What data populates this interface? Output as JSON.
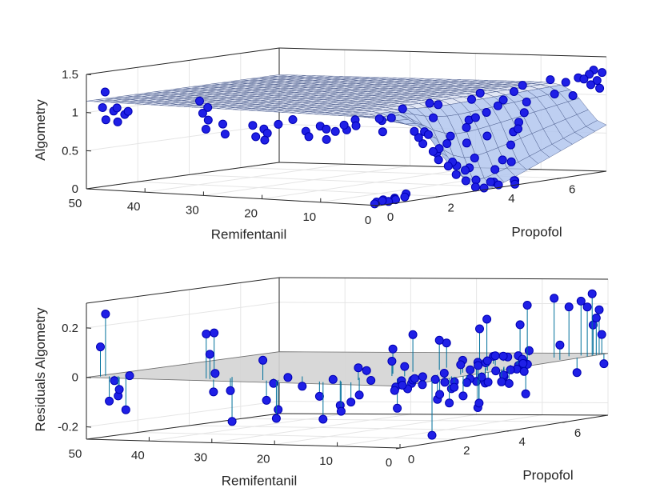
{
  "figure": {
    "colors": {
      "marker": "#1f1fe6",
      "marker_edge": "#0000b3",
      "surface_fill": "#b3c7ef",
      "zero_plane": "#d4d4d4",
      "stem": "#00709b",
      "box": "#262626",
      "grid": "#e5e5e5"
    }
  },
  "chart_data": [
    {
      "type": "scatter",
      "subtype": "3d-scatter-with-fitted-surface",
      "title": "",
      "xlabel": "Remifentanil",
      "ylabel": "Propofol",
      "zlabel": "Algometry",
      "xlim": [
        0,
        50
      ],
      "ylim": [
        0,
        7.5
      ],
      "zlim": [
        0,
        1.5
      ],
      "xticks": [
        "50",
        "40",
        "30",
        "20",
        "10",
        "0"
      ],
      "yticks": [
        "0",
        "2",
        "4",
        "6"
      ],
      "zticks": [
        "0",
        "0.5",
        "1",
        "1.5"
      ],
      "grid": true,
      "surface": {
        "model": "response surface, ~1.15 plateau dropping to ~0 at high Propofol / low Remifentanil",
        "plateau": 1.15,
        "minimum": 0
      },
      "points_xyz": [
        [
          49,
          0.5,
          1.25
        ],
        [
          49,
          0.4,
          1.05
        ],
        [
          48,
          0.6,
          1.0
        ],
        [
          48,
          0.3,
          0.9
        ],
        [
          47,
          0.5,
          1.05
        ],
        [
          47,
          0.8,
          0.95
        ],
        [
          46,
          0.3,
          0.88
        ],
        [
          46,
          0.7,
          1.0
        ],
        [
          33,
          0.5,
          1.2
        ],
        [
          33,
          0.8,
          1.1
        ],
        [
          32,
          0.4,
          1.05
        ],
        [
          32,
          0.6,
          0.95
        ],
        [
          31,
          1.0,
          0.75
        ],
        [
          31,
          0.3,
          0.85
        ],
        [
          30,
          0.7,
          0.9
        ],
        [
          24,
          0.5,
          0.92
        ],
        [
          24,
          0.9,
          0.85
        ],
        [
          23,
          0.4,
          0.78
        ],
        [
          23,
          1.2,
          0.9
        ],
        [
          22,
          0.6,
          0.82
        ],
        [
          22,
          1.5,
          0.95
        ],
        [
          21,
          0.3,
          0.75
        ],
        [
          15,
          0.5,
          0.88
        ],
        [
          15,
          1.0,
          0.92
        ],
        [
          14,
          0.4,
          0.82
        ],
        [
          14,
          2.0,
          0.95
        ],
        [
          13,
          0.8,
          0.9
        ],
        [
          13,
          1.5,
          0.85
        ],
        [
          12,
          0.6,
          0.78
        ],
        [
          12,
          2.5,
          0.92
        ],
        [
          11,
          1.0,
          0.95
        ],
        [
          11,
          3.0,
          1.05
        ],
        [
          10,
          0.5,
          0.9
        ],
        [
          10,
          2.0,
          0.98
        ],
        [
          10,
          4.0,
          1.05
        ],
        [
          9,
          1.0,
          0.95
        ],
        [
          9,
          3.5,
          1.1
        ],
        [
          8,
          2.0,
          1.0
        ],
        [
          8,
          5.0,
          1.15
        ],
        [
          7,
          1.5,
          0.85
        ],
        [
          7,
          4.5,
          1.1
        ],
        [
          6,
          3.0,
          0.95
        ],
        [
          6,
          6.0,
          1.2
        ],
        [
          5,
          2.5,
          0.8
        ],
        [
          5,
          5.5,
          1.15
        ],
        [
          4,
          4.0,
          0.9
        ],
        [
          4,
          6.5,
          1.25
        ],
        [
          3,
          3.5,
          0.6
        ],
        [
          3,
          6.8,
          1.2
        ],
        [
          2,
          5.0,
          0.7
        ],
        [
          2,
          7.0,
          1.25
        ],
        [
          1,
          6.0,
          1.1
        ],
        [
          1,
          7.2,
          1.15
        ],
        [
          0.5,
          6.5,
          1.05
        ],
        [
          0.5,
          7.3,
          1.2
        ],
        [
          0.3,
          7.0,
          1.3
        ],
        [
          0.2,
          6.8,
          1.25
        ],
        [
          0.1,
          7.1,
          1.35
        ],
        [
          0.1,
          7.3,
          1.1
        ],
        [
          0.2,
          7.4,
          1.3
        ],
        [
          0.2,
          1.2,
          0.9
        ],
        [
          0.3,
          1.5,
          0.72
        ],
        [
          0.1,
          1.8,
          0.6
        ],
        [
          0.2,
          2.0,
          0.48
        ],
        [
          0.1,
          2.3,
          0.38
        ],
        [
          0.3,
          2.6,
          0.25
        ],
        [
          0.2,
          2.9,
          0.15
        ],
        [
          0.1,
          3.2,
          0.05
        ],
        [
          0.2,
          3.5,
          0.02
        ],
        [
          0.3,
          4.0,
          0.03
        ],
        [
          0.1,
          4.5,
          0.01
        ],
        [
          1.0,
          1.5,
          0.8
        ],
        [
          1.5,
          2.2,
          0.55
        ],
        [
          1.2,
          2.8,
          0.35
        ],
        [
          1.5,
          3.5,
          0.12
        ],
        [
          2.0,
          4.2,
          0.05
        ],
        [
          2.5,
          5.0,
          0.02
        ],
        [
          0.6,
          2.1,
          0.62
        ],
        [
          0.8,
          3.0,
          0.28
        ],
        [
          0.6,
          3.8,
          0.08
        ],
        [
          0.9,
          1.8,
          0.82
        ],
        [
          1.1,
          3.2,
          0.3
        ],
        [
          1.8,
          2.6,
          0.65
        ],
        [
          0.4,
          2.5,
          0.42
        ],
        [
          0.7,
          4.6,
          0.05
        ],
        [
          2.2,
          3.6,
          0.4
        ],
        [
          2.8,
          4.4,
          0.2
        ],
        [
          3.2,
          3.0,
          0.72
        ],
        [
          3.5,
          4.8,
          0.3
        ],
        [
          4.0,
          5.2,
          0.25
        ],
        [
          4.5,
          3.8,
          0.78
        ],
        [
          5.0,
          4.6,
          0.62
        ],
        [
          5.5,
          5.5,
          0.45
        ],
        [
          6.0,
          4.2,
          0.85
        ],
        [
          6.5,
          5.8,
          0.6
        ],
        [
          7.0,
          5.0,
          0.9
        ],
        [
          7.5,
          6.2,
          0.7
        ],
        [
          8.0,
          5.6,
          0.95
        ],
        [
          8.5,
          6.6,
          0.8
        ],
        [
          9.0,
          6.0,
          1.0
        ],
        [
          9.5,
          6.9,
          0.92
        ],
        [
          0.5,
          0.2,
          0.05
        ],
        [
          1.0,
          0.5,
          0.02
        ],
        [
          1.5,
          0.8,
          0.03
        ],
        [
          2.0,
          0.3,
          0.02
        ],
        [
          0.8,
          1.0,
          0.05
        ],
        [
          1.3,
          0.1,
          0.01
        ],
        [
          2.4,
          0.6,
          0.03
        ],
        [
          3.0,
          1.1,
          0.02
        ],
        [
          0.3,
          0.6,
          0.04
        ],
        [
          2.6,
          1.4,
          0.06
        ]
      ]
    },
    {
      "type": "scatter",
      "subtype": "3d-stem-residuals",
      "title": "",
      "xlabel": "Remifentanil",
      "ylabel": "Propofol",
      "zlabel": "Residuals Algometry",
      "xlim": [
        0,
        50
      ],
      "ylim": [
        0,
        7.5
      ],
      "zlim": [
        -0.25,
        0.3
      ],
      "xticks": [
        "50",
        "40",
        "30",
        "20",
        "10",
        "0"
      ],
      "yticks": [
        "0",
        "2",
        "4",
        "6"
      ],
      "zticks": [
        "-0.2",
        "0",
        "0.2"
      ],
      "grid": true,
      "zero_plane": 0,
      "points_xyz": [
        [
          49,
          0.5,
          0.25
        ],
        [
          49,
          0.3,
          0.12
        ],
        [
          48,
          0.6,
          -0.02
        ],
        [
          48,
          0.4,
          -0.1
        ],
        [
          47,
          0.5,
          -0.08
        ],
        [
          47,
          0.8,
          -0.14
        ],
        [
          46,
          0.3,
          -0.05
        ],
        [
          46,
          0.7,
          0.0
        ],
        [
          33,
          0.5,
          0.18
        ],
        [
          33,
          0.8,
          0.18
        ],
        [
          32,
          0.4,
          0.1
        ],
        [
          32,
          0.6,
          0.02
        ],
        [
          31,
          1.0,
          -0.18
        ],
        [
          31,
          0.3,
          -0.05
        ],
        [
          30,
          0.7,
          -0.05
        ],
        [
          24,
          0.5,
          0.08
        ],
        [
          24,
          0.9,
          -0.02
        ],
        [
          23,
          0.4,
          -0.08
        ],
        [
          23,
          1.2,
          0.0
        ],
        [
          22,
          0.6,
          -0.12
        ],
        [
          22,
          1.5,
          -0.04
        ],
        [
          21,
          0.3,
          -0.15
        ],
        [
          15,
          0.5,
          -0.06
        ],
        [
          15,
          1.0,
          0.0
        ],
        [
          14,
          0.4,
          -0.15
        ],
        [
          14,
          2.0,
          0.02
        ],
        [
          13,
          0.8,
          -0.1
        ],
        [
          13,
          1.5,
          -0.07
        ],
        [
          12,
          0.6,
          -0.12
        ],
        [
          12,
          2.5,
          0.1
        ],
        [
          11,
          1.0,
          0.05
        ],
        [
          11,
          3.0,
          0.15
        ],
        [
          10,
          0.5,
          -0.08
        ],
        [
          10,
          2.0,
          0.06
        ],
        [
          10,
          4.0,
          0.1
        ],
        [
          9,
          1.0,
          0.0
        ],
        [
          9,
          3.5,
          0.12
        ],
        [
          8,
          2.0,
          0.04
        ],
        [
          8,
          5.0,
          0.18
        ],
        [
          7,
          1.5,
          -0.12
        ],
        [
          7,
          4.5,
          0.15
        ],
        [
          6,
          3.0,
          -0.04
        ],
        [
          6,
          6.0,
          0.22
        ],
        [
          5,
          2.5,
          -0.1
        ],
        [
          5,
          5.5,
          0.15
        ],
        [
          4,
          4.0,
          -0.06
        ],
        [
          4,
          6.5,
          0.24
        ],
        [
          3,
          3.5,
          -0.15
        ],
        [
          3,
          6.8,
          0.2
        ],
        [
          2,
          5.0,
          -0.12
        ],
        [
          2,
          7.0,
          0.22
        ],
        [
          1,
          6.0,
          0.06
        ],
        [
          1,
          7.2,
          0.12
        ],
        [
          0.5,
          6.5,
          -0.06
        ],
        [
          0.5,
          7.3,
          0.18
        ],
        [
          0.3,
          7.0,
          0.25
        ],
        [
          0.2,
          6.8,
          0.2
        ],
        [
          0.1,
          7.1,
          0.15
        ],
        [
          0.1,
          7.3,
          0.08
        ],
        [
          0.2,
          7.4,
          -0.04
        ],
        [
          0.2,
          1.2,
          -0.22
        ],
        [
          0.3,
          1.5,
          -0.06
        ],
        [
          0.1,
          1.8,
          -0.1
        ],
        [
          0.2,
          2.0,
          -0.04
        ],
        [
          0.1,
          2.3,
          -0.08
        ],
        [
          0.3,
          2.6,
          0.02
        ],
        [
          0.2,
          2.9,
          -0.12
        ],
        [
          0.1,
          3.2,
          -0.04
        ],
        [
          0.2,
          3.5,
          0.0
        ],
        [
          0.3,
          4.0,
          -0.06
        ],
        [
          0.1,
          4.5,
          -0.02
        ],
        [
          1.0,
          1.5,
          0.0
        ],
        [
          1.5,
          2.2,
          -0.05
        ],
        [
          1.2,
          2.8,
          -0.02
        ],
        [
          1.5,
          3.5,
          0.04
        ],
        [
          2.0,
          4.2,
          -0.03
        ],
        [
          2.5,
          5.0,
          0.02
        ],
        [
          0.6,
          2.1,
          -0.02
        ],
        [
          0.8,
          3.0,
          0.03
        ],
        [
          0.6,
          3.8,
          -0.05
        ],
        [
          0.9,
          1.8,
          0.02
        ],
        [
          1.1,
          3.2,
          -0.02
        ],
        [
          1.8,
          2.6,
          0.04
        ],
        [
          0.4,
          2.5,
          -0.03
        ],
        [
          0.7,
          4.6,
          0.01
        ],
        [
          2.2,
          3.6,
          0.03
        ],
        [
          2.8,
          4.4,
          -0.04
        ],
        [
          3.2,
          3.0,
          0.05
        ],
        [
          3.5,
          4.8,
          -0.02
        ],
        [
          4.0,
          5.2,
          0.03
        ],
        [
          4.5,
          3.8,
          -0.05
        ],
        [
          5.0,
          4.6,
          0.04
        ],
        [
          5.5,
          5.5,
          -0.03
        ],
        [
          6.0,
          4.2,
          0.02
        ],
        [
          6.5,
          5.8,
          -0.02
        ],
        [
          7.0,
          5.0,
          0.03
        ],
        [
          7.5,
          6.2,
          -0.01
        ],
        [
          8.0,
          5.6,
          0.02
        ],
        [
          8.5,
          6.6,
          -0.03
        ],
        [
          9.0,
          6.0,
          0.01
        ],
        [
          9.5,
          6.9,
          0.02
        ],
        [
          0.5,
          0.2,
          0.0
        ],
        [
          1.0,
          0.5,
          -0.02
        ],
        [
          1.5,
          0.8,
          0.01
        ],
        [
          2.0,
          0.3,
          -0.01
        ],
        [
          0.8,
          1.0,
          0.02
        ],
        [
          1.3,
          0.1,
          -0.02
        ],
        [
          2.4,
          0.6,
          0.01
        ],
        [
          3.0,
          1.1,
          -0.01
        ],
        [
          0.3,
          0.6,
          0.02
        ],
        [
          2.6,
          1.4,
          -0.02
        ]
      ]
    }
  ]
}
